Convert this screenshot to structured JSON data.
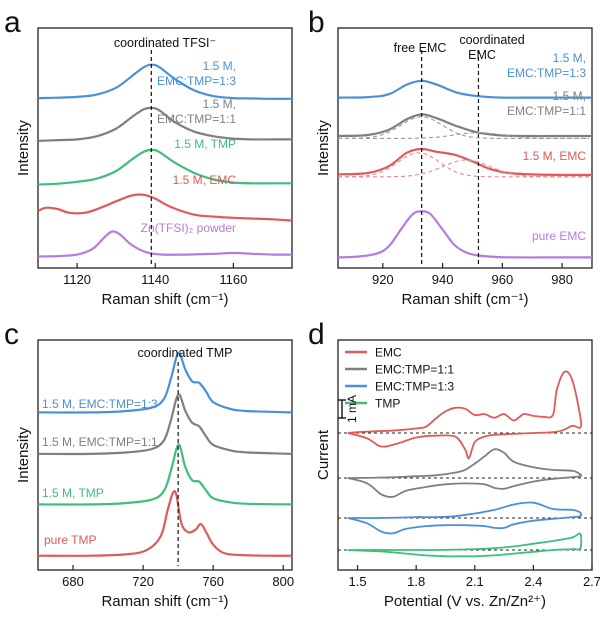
{
  "chart_data": [
    {
      "panel": "a",
      "type": "line",
      "xlabel": "Raman shift (cm⁻¹)",
      "ylabel": "Intensity",
      "xlim": [
        1110,
        1175
      ],
      "xticks": [
        1120,
        1140,
        1160
      ],
      "annotation": "coordinated TFSI⁻",
      "marker_x": 1139,
      "series": [
        {
          "name": "1.5 M, EMC:TMP=1:3",
          "label_lines": [
            "1.5 M,",
            "EMC:TMP=1:3"
          ],
          "color": "#4a90d9",
          "x": [
            1110,
            1115,
            1120,
            1125,
            1130,
            1134,
            1137,
            1139,
            1141,
            1145,
            1150,
            1155,
            1160,
            1165,
            1170,
            1175
          ],
          "y": [
            0.05,
            0.06,
            0.08,
            0.14,
            0.32,
            0.62,
            0.85,
            0.92,
            0.86,
            0.55,
            0.25,
            0.1,
            0.05,
            0.04,
            0.03,
            0.03
          ]
        },
        {
          "name": "1.5 M, EMC:TMP=1:1",
          "label_lines": [
            "1.5 M,",
            "EMC:TMP=1:1"
          ],
          "color": "#7f7f7f",
          "x": [
            1110,
            1115,
            1120,
            1125,
            1130,
            1134,
            1137,
            1139,
            1141,
            1145,
            1150,
            1155,
            1160,
            1165,
            1170,
            1175
          ],
          "y": [
            0.06,
            0.08,
            0.1,
            0.18,
            0.38,
            0.68,
            0.88,
            0.92,
            0.86,
            0.55,
            0.3,
            0.18,
            0.12,
            0.1,
            0.1,
            0.1
          ]
        },
        {
          "name": "1.5 M, TMP",
          "label_lines": [
            "1.5 M, TMP"
          ],
          "color": "#3dbf7a",
          "x": [
            1110,
            1115,
            1120,
            1125,
            1130,
            1134,
            1137,
            1139,
            1141,
            1145,
            1150,
            1155,
            1160,
            1165,
            1170,
            1175
          ],
          "y": [
            0.05,
            0.07,
            0.12,
            0.2,
            0.4,
            0.7,
            0.9,
            0.95,
            0.9,
            0.62,
            0.35,
            0.18,
            0.1,
            0.08,
            0.08,
            0.08
          ]
        },
        {
          "name": "1.5 M, EMC",
          "label_lines": [
            "1.5 M, EMC"
          ],
          "color": "#e05a5a",
          "x": [
            1110,
            1112,
            1115,
            1118,
            1122,
            1126,
            1130,
            1134,
            1137,
            1140,
            1144,
            1150,
            1155,
            1160,
            1165,
            1170,
            1175
          ],
          "y": [
            0.3,
            0.38,
            0.35,
            0.25,
            0.25,
            0.38,
            0.55,
            0.7,
            0.72,
            0.62,
            0.4,
            0.2,
            0.15,
            0.12,
            0.1,
            0.08,
            0.05
          ]
        },
        {
          "name": "Zn(TFSI)₂ powder",
          "label_lines": [
            "Zn(TFSI)₂ powder"
          ],
          "color": "#b57be0",
          "x": [
            1110,
            1115,
            1120,
            1124,
            1127,
            1129,
            1131,
            1134,
            1138,
            1142,
            1148,
            1155,
            1160,
            1165,
            1170,
            1175
          ],
          "y": [
            0.05,
            0.06,
            0.1,
            0.25,
            0.55,
            0.7,
            0.62,
            0.35,
            0.15,
            0.1,
            0.1,
            0.12,
            0.14,
            0.12,
            0.1,
            0.1
          ]
        }
      ]
    },
    {
      "panel": "b",
      "type": "line",
      "xlabel": "Raman shift (cm⁻¹)",
      "ylabel": "Intensity",
      "xlim": [
        905,
        990
      ],
      "xticks": [
        920,
        940,
        960,
        980
      ],
      "annotations": [
        "free EMC",
        "coordinated",
        "EMC"
      ],
      "marker_x": [
        933,
        952
      ],
      "series": [
        {
          "name": "1.5 M, EMC:TMP=1:3",
          "label_lines": [
            "1.5 M,",
            "EMC:TMP=1:3"
          ],
          "color": "#4a90d9",
          "x": [
            905,
            915,
            922,
            928,
            933,
            938,
            945,
            952,
            960,
            970,
            980,
            990
          ],
          "y": [
            0.05,
            0.06,
            0.12,
            0.32,
            0.4,
            0.32,
            0.15,
            0.08,
            0.05,
            0.05,
            0.05,
            0.05
          ]
        },
        {
          "name": "1.5 M, EMC:TMP=1:1",
          "label_lines": [
            "1.5 M,",
            "EMC:TMP=1:1"
          ],
          "color": "#7f7f7f",
          "x": [
            905,
            915,
            922,
            928,
            933,
            938,
            945,
            952,
            960,
            970,
            980,
            990
          ],
          "y": [
            0.05,
            0.07,
            0.18,
            0.4,
            0.5,
            0.42,
            0.25,
            0.12,
            0.06,
            0.05,
            0.05,
            0.05
          ]
        },
        {
          "name": "1.5 M, EMC",
          "label_lines": [
            "1.5 M, EMC"
          ],
          "color": "#e05a5a",
          "x": [
            905,
            915,
            922,
            928,
            933,
            938,
            944,
            950,
            956,
            962,
            970,
            980,
            990
          ],
          "y": [
            0.05,
            0.08,
            0.22,
            0.5,
            0.58,
            0.52,
            0.46,
            0.32,
            0.16,
            0.08,
            0.05,
            0.04,
            0.04
          ]
        },
        {
          "name": "pure EMC",
          "label_lines": [
            "pure EMC"
          ],
          "color": "#b57be0",
          "x": [
            905,
            912,
            918,
            922,
            926,
            930,
            933,
            936,
            940,
            944,
            948,
            952,
            958,
            965,
            975,
            990
          ],
          "y": [
            0.02,
            0.04,
            0.1,
            0.25,
            0.6,
            0.92,
            0.98,
            0.92,
            0.6,
            0.28,
            0.12,
            0.06,
            0.03,
            0.02,
            0.02,
            0.02
          ]
        }
      ]
    },
    {
      "panel": "c",
      "type": "line",
      "xlabel": "Raman shift (cm⁻¹)",
      "ylabel": "Intensity",
      "xlim": [
        660,
        805
      ],
      "xticks": [
        680,
        720,
        760,
        800
      ],
      "annotation": "coordinated TMP",
      "marker_x": 740,
      "series": [
        {
          "name": "1.5 M, EMC:TMP=1:3",
          "label_lines": [
            "1.5 M, EMC:TMP=1:3"
          ],
          "color": "#4a90d9",
          "x": [
            660,
            690,
            710,
            725,
            732,
            736,
            739,
            741,
            744,
            748,
            752,
            756,
            760,
            770,
            780,
            805
          ],
          "y": [
            0.05,
            0.05,
            0.07,
            0.12,
            0.25,
            0.55,
            0.85,
            0.9,
            0.68,
            0.5,
            0.48,
            0.35,
            0.2,
            0.1,
            0.07,
            0.05
          ]
        },
        {
          "name": "1.5 M, EMC:TMP=1:1",
          "label_lines": [
            "1.5 M, EMC:TMP=1:1"
          ],
          "color": "#7f7f7f",
          "x": [
            660,
            690,
            710,
            725,
            732,
            736,
            739,
            741,
            744,
            748,
            752,
            756,
            760,
            770,
            780,
            805
          ],
          "y": [
            0.05,
            0.05,
            0.07,
            0.12,
            0.25,
            0.55,
            0.85,
            0.9,
            0.68,
            0.5,
            0.45,
            0.3,
            0.18,
            0.1,
            0.07,
            0.05
          ]
        },
        {
          "name": "1.5 M, TMP",
          "label_lines": [
            "1.5 M, TMP"
          ],
          "color": "#3dbf7a",
          "x": [
            660,
            690,
            710,
            725,
            732,
            736,
            739,
            741,
            744,
            748,
            752,
            756,
            760,
            770,
            780,
            805
          ],
          "y": [
            0.05,
            0.05,
            0.07,
            0.12,
            0.25,
            0.55,
            0.85,
            0.9,
            0.6,
            0.4,
            0.38,
            0.25,
            0.14,
            0.08,
            0.06,
            0.05
          ]
        },
        {
          "name": "pure TMP",
          "label_lines": [
            "pure TMP"
          ],
          "color": "#e05a5a",
          "x": [
            660,
            690,
            710,
            722,
            730,
            734,
            737,
            739,
            742,
            746,
            750,
            753,
            756,
            760,
            766,
            775,
            790,
            805
          ],
          "y": [
            0.04,
            0.04,
            0.06,
            0.12,
            0.32,
            0.7,
            0.95,
            0.92,
            0.5,
            0.38,
            0.42,
            0.5,
            0.38,
            0.2,
            0.08,
            0.05,
            0.04,
            0.04
          ]
        }
      ]
    },
    {
      "panel": "d",
      "type": "line",
      "xlabel": "Potential (V vs. Zn/Zn²⁺)",
      "ylabel": "Current",
      "scale_bar_label": "1 mA",
      "xlim": [
        1.4,
        2.7
      ],
      "xticks": [
        1.5,
        1.8,
        2.1,
        2.4,
        2.7
      ],
      "legend": [
        "EMC",
        "EMC:TMP=1:1",
        "EMC:TMP=1:3",
        "TMP"
      ],
      "legend_position": "top-left",
      "series": [
        {
          "name": "EMC",
          "color": "#e05a5a",
          "x": [
            1.45,
            1.55,
            1.62,
            1.7,
            1.8,
            1.9,
            2.0,
            2.05,
            2.07,
            2.1,
            2.15,
            2.2,
            2.3,
            2.4,
            2.5,
            2.55,
            2.6,
            2.64,
            2.64,
            2.6,
            2.56,
            2.52,
            2.5,
            2.45,
            2.4,
            2.35,
            2.3,
            2.25,
            2.2,
            2.15,
            2.1,
            2.05,
            2.0,
            1.95,
            1.9,
            1.85,
            1.8,
            1.7,
            1.6,
            1.5,
            1.45
          ],
          "y": [
            0.0,
            -0.3,
            -0.75,
            -0.6,
            -0.25,
            -0.15,
            -0.2,
            -0.9,
            -1.4,
            -0.5,
            -0.2,
            -0.1,
            -0.05,
            0.0,
            0.05,
            0.15,
            0.4,
            0.3,
            0.9,
            2.9,
            3.4,
            2.4,
            1.0,
            0.9,
            0.95,
            1.05,
            0.7,
            1.05,
            0.85,
            1.05,
            1.0,
            1.35,
            1.4,
            1.2,
            0.8,
            0.35,
            0.25,
            0.15,
            0.1,
            0.05,
            0.0
          ]
        },
        {
          "name": "EMC:TMP=1:1",
          "color": "#7f7f7f",
          "x": [
            1.45,
            1.55,
            1.62,
            1.68,
            1.75,
            1.85,
            1.95,
            2.05,
            2.15,
            2.2,
            2.25,
            2.3,
            2.4,
            2.5,
            2.6,
            2.64,
            2.64,
            2.6,
            2.5,
            2.4,
            2.3,
            2.25,
            2.2,
            2.15,
            2.1,
            2.05,
            2.0,
            1.9,
            1.8,
            1.7,
            1.6,
            1.5,
            1.45
          ],
          "y": [
            0.0,
            -0.3,
            -0.9,
            -1.05,
            -0.7,
            -0.5,
            -0.35,
            -0.3,
            -0.35,
            -0.55,
            -0.6,
            -0.45,
            -0.2,
            -0.05,
            0.05,
            0.1,
            0.2,
            0.4,
            0.45,
            0.6,
            0.9,
            1.4,
            1.6,
            1.2,
            0.8,
            0.45,
            0.3,
            0.15,
            0.1,
            0.05,
            0.02,
            0.0,
            0.0
          ]
        },
        {
          "name": "EMC:TMP=1:3",
          "color": "#4a90d9",
          "x": [
            1.45,
            1.55,
            1.62,
            1.68,
            1.75,
            1.85,
            1.95,
            2.05,
            2.15,
            2.2,
            2.25,
            2.3,
            2.4,
            2.5,
            2.6,
            2.64,
            2.64,
            2.6,
            2.5,
            2.4,
            2.3,
            2.2,
            2.1,
            2.0,
            1.9,
            1.8,
            1.7,
            1.6,
            1.5,
            1.45
          ],
          "y": [
            0.0,
            -0.3,
            -0.75,
            -0.85,
            -0.6,
            -0.45,
            -0.4,
            -0.4,
            -0.45,
            -0.55,
            -0.55,
            -0.35,
            -0.15,
            -0.05,
            0.05,
            0.1,
            0.3,
            0.45,
            0.5,
            0.85,
            0.75,
            0.45,
            0.25,
            0.1,
            0.05,
            0.05,
            0.02,
            0.0,
            0.0,
            0.0
          ]
        },
        {
          "name": "TMP",
          "color": "#3dbf7a",
          "x": [
            1.45,
            1.55,
            1.65,
            1.75,
            1.85,
            1.95,
            2.05,
            2.1,
            2.2,
            2.3,
            2.4,
            2.5,
            2.6,
            2.64,
            2.64,
            2.6,
            2.5,
            2.4,
            2.3,
            2.2,
            2.1,
            2.0,
            1.9,
            1.8,
            1.7,
            1.6,
            1.5,
            1.45
          ],
          "y": [
            0.0,
            -0.05,
            -0.1,
            -0.2,
            -0.3,
            -0.35,
            -0.35,
            -0.35,
            -0.3,
            -0.2,
            -0.1,
            0.0,
            0.05,
            0.1,
            0.9,
            0.7,
            0.5,
            0.35,
            0.2,
            0.1,
            0.05,
            0.02,
            0.0,
            0.0,
            0.0,
            0.0,
            0.0,
            0.0
          ]
        }
      ]
    }
  ]
}
